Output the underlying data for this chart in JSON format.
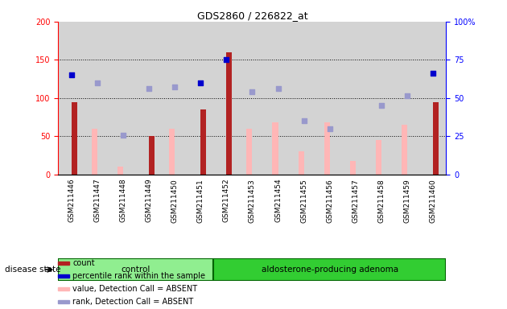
{
  "title": "GDS2860 / 226822_at",
  "samples": [
    "GSM211446",
    "GSM211447",
    "GSM211448",
    "GSM211449",
    "GSM211450",
    "GSM211451",
    "GSM211452",
    "GSM211453",
    "GSM211454",
    "GSM211455",
    "GSM211456",
    "GSM211457",
    "GSM211458",
    "GSM211459",
    "GSM211460"
  ],
  "count_values": [
    95,
    null,
    null,
    50,
    null,
    85,
    160,
    null,
    null,
    null,
    null,
    null,
    null,
    null,
    95
  ],
  "percentile_rank": [
    130,
    null,
    null,
    null,
    null,
    120,
    150,
    null,
    null,
    null,
    null,
    null,
    null,
    null,
    133
  ],
  "value_absent": [
    null,
    60,
    10,
    null,
    60,
    null,
    null,
    60,
    68,
    30,
    68,
    18,
    45,
    65,
    null
  ],
  "rank_absent": [
    null,
    120,
    52,
    113,
    115,
    null,
    null,
    108,
    113,
    70,
    60,
    null,
    90,
    103,
    null
  ],
  "control_count": 6,
  "adenoma_count": 9,
  "ylim_left": [
    0,
    200
  ],
  "ylim_right": [
    0,
    100
  ],
  "yticks_left": [
    0,
    50,
    100,
    150,
    200
  ],
  "yticks_right": [
    0,
    25,
    50,
    75,
    100
  ],
  "bar_color_count": "#b22222",
  "bar_color_absent": "#ffb6b6",
  "dot_color_rank": "#0000cd",
  "dot_color_rank_absent": "#9999cc",
  "bg_color": "#d3d3d3",
  "control_color": "#90ee90",
  "adenoma_color": "#32cd32",
  "white": "#ffffff"
}
